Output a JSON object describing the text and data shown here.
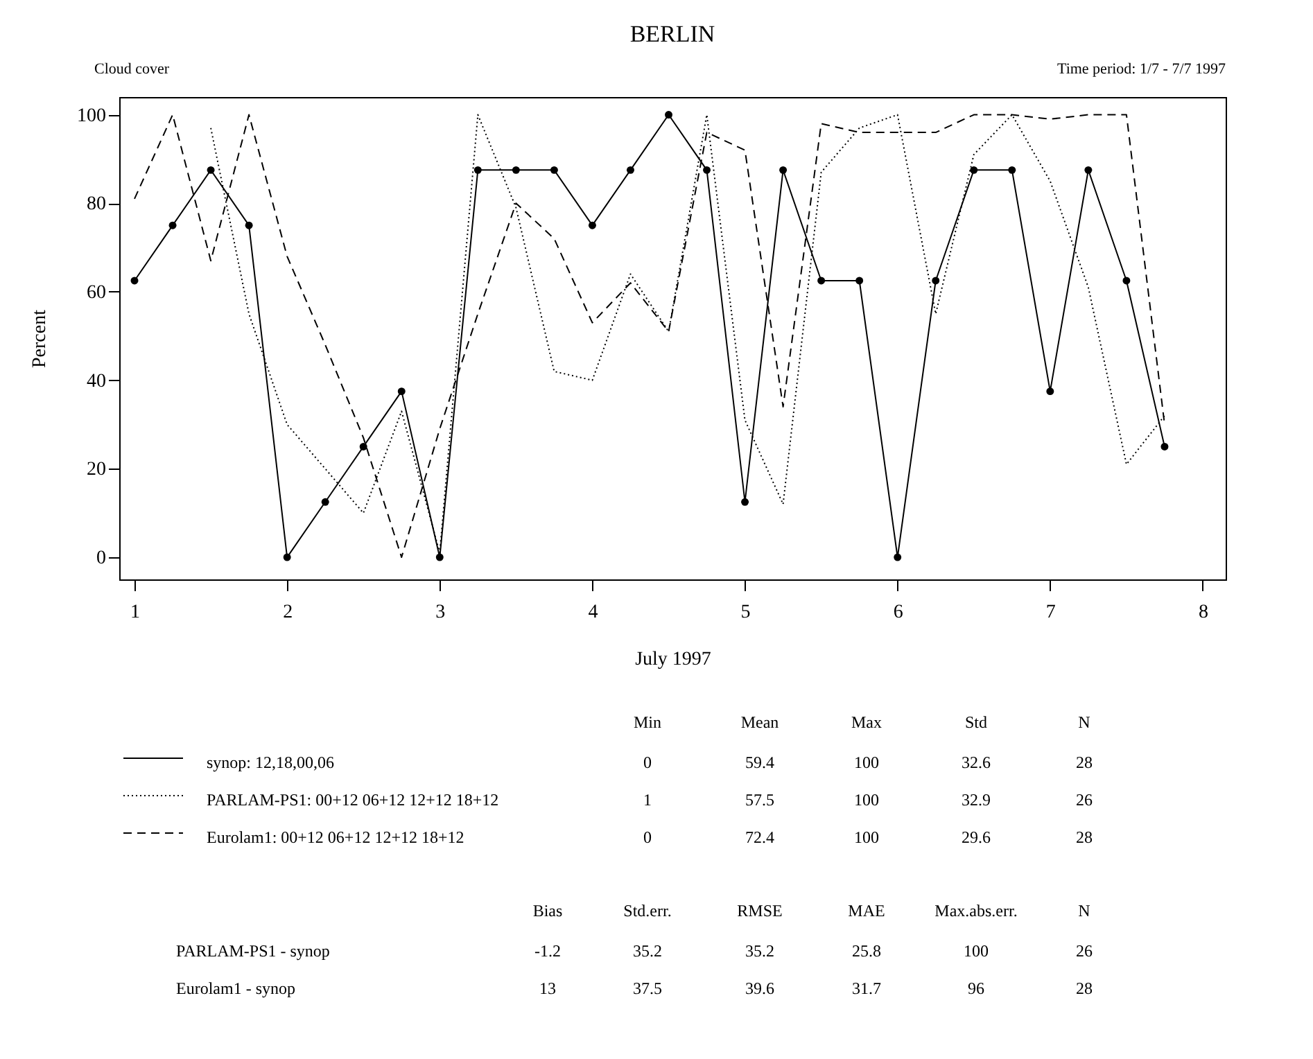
{
  "chart_data": {
    "type": "line",
    "title": "BERLIN",
    "xlabel": "July 1997",
    "ylabel": "Percent",
    "xlim": [
      0.9,
      8.15
    ],
    "xticks": [
      1,
      2,
      3,
      4,
      5,
      6,
      7,
      8
    ],
    "ylim": [
      -5,
      104
    ],
    "yticks": [
      0,
      20,
      40,
      60,
      80,
      100
    ],
    "grid": false,
    "legend": "bottom",
    "series": [
      {
        "name": "synop:  12,18,00,06",
        "color": "#000000",
        "line_style": "solid",
        "marker": "circle",
        "x": [
          1,
          1.25,
          1.5,
          1.75,
          2,
          2.25,
          2.5,
          2.75,
          3,
          3.25,
          3.5,
          3.75,
          4,
          4.25,
          4.5,
          4.75,
          5,
          5.25,
          5.5,
          5.75,
          6,
          6.25,
          6.5,
          6.75,
          7,
          7.25,
          7.5,
          7.75
        ],
        "values": [
          62.5,
          75,
          87.5,
          75,
          0,
          12.5,
          25,
          37.5,
          0,
          87.5,
          87.5,
          87.5,
          75,
          87.5,
          100,
          87.5,
          12.5,
          87.5,
          62.5,
          62.5,
          0,
          62.5,
          87.5,
          87.5,
          37.5,
          87.5,
          62.5,
          25
        ]
      },
      {
        "name": "PARLAM-PS1:  00+12 06+12 12+12 18+12",
        "color": "#000000",
        "line_style": "dotted",
        "marker": "none",
        "x": [
          1.5,
          1.75,
          2,
          2.25,
          2.5,
          2.75,
          3,
          3.25,
          3.5,
          3.75,
          4,
          4.25,
          4.5,
          4.75,
          5,
          5.25,
          5.5,
          5.75,
          6,
          6.25,
          6.5,
          6.75,
          7,
          7.25,
          7.5,
          7.75
        ],
        "values": [
          97,
          55,
          30,
          20,
          10,
          33,
          1,
          100,
          79,
          42,
          40,
          64,
          51,
          100,
          31,
          12,
          87,
          97,
          100,
          55,
          91,
          100,
          85,
          61,
          21,
          32
        ]
      },
      {
        "name": "Eurolam1:  00+12 06+12 12+12 18+12",
        "color": "#000000",
        "line_style": "dashed",
        "marker": "none",
        "x": [
          1,
          1.25,
          1.5,
          1.75,
          2,
          2.25,
          2.5,
          2.75,
          3,
          3.25,
          3.5,
          3.75,
          4,
          4.25,
          4.5,
          4.75,
          5,
          5.25,
          5.5,
          5.75,
          6,
          6.25,
          6.5,
          6.75,
          7,
          7.25,
          7.5,
          7.75
        ],
        "values": [
          81,
          100,
          67,
          100,
          68,
          48,
          27,
          0,
          29,
          55,
          80,
          72,
          53,
          62,
          51,
          96,
          92,
          34,
          98,
          96,
          96,
          96,
          100,
          100,
          99,
          100,
          100,
          30
        ]
      }
    ],
    "annotations": [
      "Cloud cover",
      "Time period: 1/7 - 7/7 1997",
      "Min",
      "Mean",
      "Max",
      "Std",
      "N",
      "0",
      "59.4",
      "100",
      "32.6",
      "28",
      "1",
      "57.5",
      "100",
      "32.9",
      "26",
      "0",
      "72.4",
      "100",
      "29.6",
      "28",
      "Bias",
      "Std.err.",
      "RMSE",
      "MAE",
      "Max.abs.err.",
      "N",
      "PARLAM-PS1 - synop",
      "-1.2",
      "35.2",
      "35.2",
      "25.8",
      "100",
      "26",
      "Eurolam1 - synop",
      "13",
      "37.5",
      "39.6",
      "31.7",
      "96",
      "28"
    ]
  }
}
